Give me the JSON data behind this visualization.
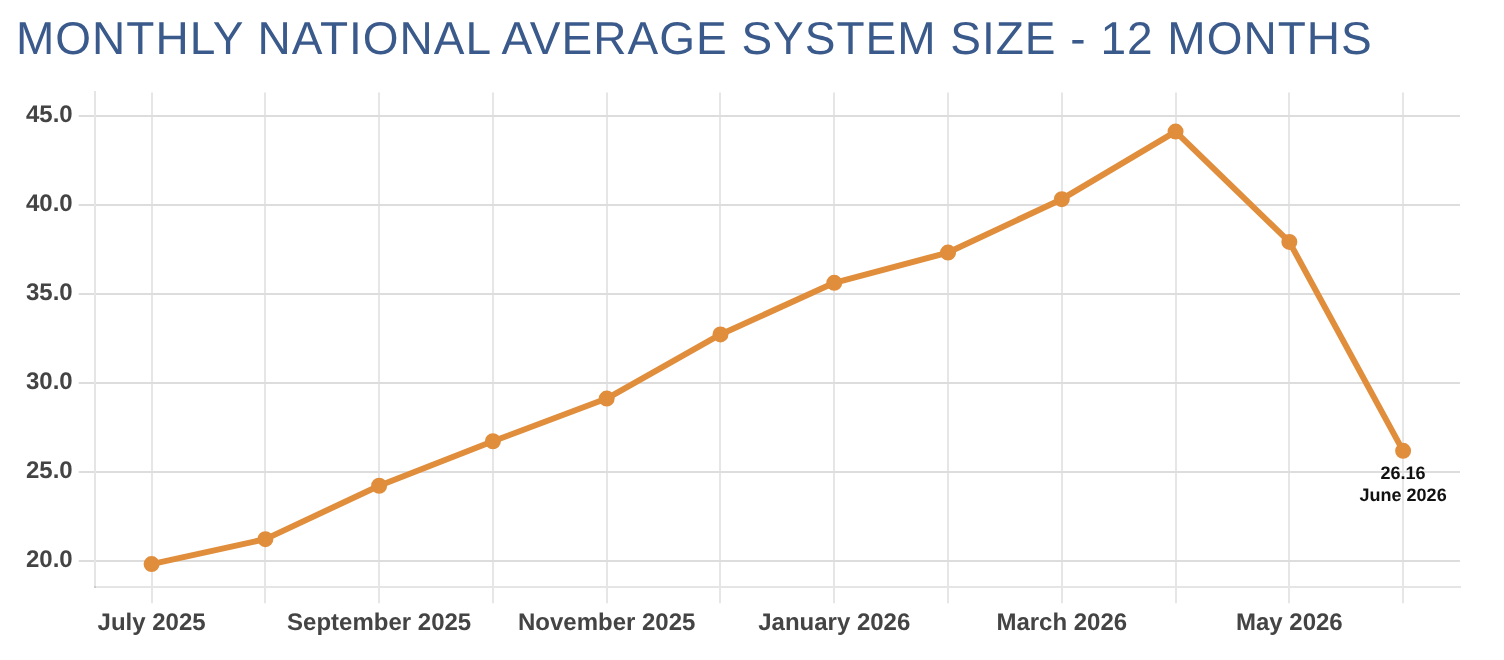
{
  "chart_data": {
    "type": "line",
    "title": "MONTHLY NATIONAL AVERAGE SYSTEM SIZE - 12 MONTHS",
    "categories": [
      "July 2025",
      null,
      "September 2025",
      null,
      "November 2025",
      null,
      "January 2026",
      null,
      "March 2026",
      null,
      "May 2026",
      null
    ],
    "series": [
      {
        "color": "#e08e3c",
        "values": [
          19.8,
          21.2,
          24.2,
          26.7,
          29.1,
          32.7,
          35.6,
          37.3,
          40.3,
          44.1,
          37.9,
          26.16
        ]
      }
    ],
    "ylim": [
      18.5,
      46.3
    ],
    "yticks": [
      {
        "value": 20,
        "label": "20.0"
      },
      {
        "value": 25,
        "label": "25.0"
      },
      {
        "value": 30,
        "label": "30.0"
      },
      {
        "value": 35,
        "label": "35.0"
      },
      {
        "value": 40,
        "label": "40.0"
      },
      {
        "value": 45,
        "label": "45.0"
      }
    ],
    "annotations": [
      {
        "text": "26.16\nJune 2026",
        "y": 26.16
      }
    ],
    "grid": true,
    "legend": false,
    "marker": "circle",
    "line_style": "solid"
  }
}
